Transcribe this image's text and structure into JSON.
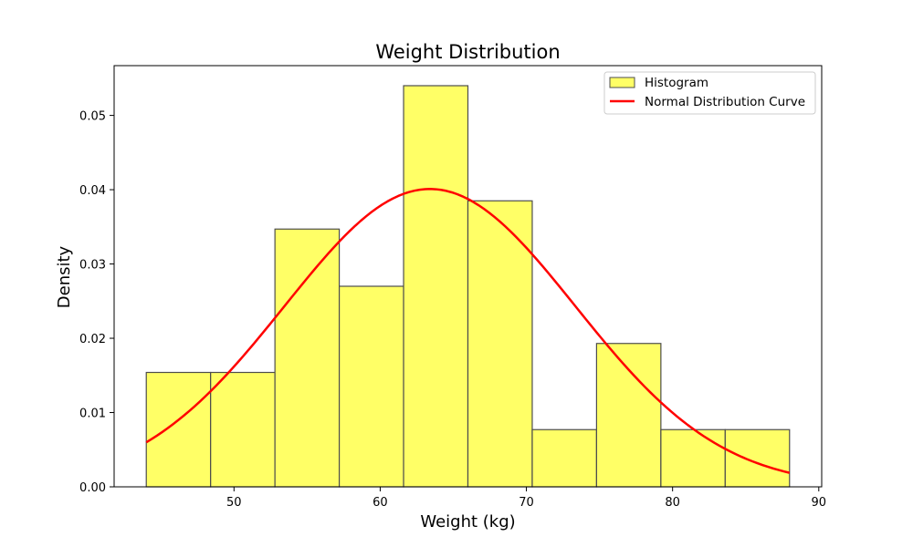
{
  "chart_data": {
    "type": "bar",
    "title": "Weight Distribution",
    "xlabel": "Weight (kg)",
    "ylabel": "Density",
    "xlim": [
      41.8,
      90.2
    ],
    "ylim": [
      0,
      0.0567
    ],
    "xticks": [
      50,
      60,
      70,
      80,
      90
    ],
    "yticks": [
      0.0,
      0.01,
      0.02,
      0.03,
      0.04,
      0.05
    ],
    "ytick_labels": [
      "0.00",
      "0.01",
      "0.02",
      "0.03",
      "0.04",
      "0.05"
    ],
    "grid": false,
    "legend_position": "top-right",
    "histogram": {
      "name": "Histogram",
      "bin_edges": [
        44.0,
        48.4,
        52.8,
        57.2,
        61.6,
        66.0,
        70.4,
        74.8,
        79.2,
        83.6,
        88.0
      ],
      "values": [
        0.0154,
        0.0154,
        0.0347,
        0.027,
        0.054,
        0.0385,
        0.0077,
        0.0193,
        0.0077,
        0.0077
      ],
      "color": "#ffff66",
      "edge_color": "#4d4d4d"
    },
    "series": [
      {
        "name": "Normal Distribution Curve",
        "type": "line",
        "color": "#ff0000",
        "mean": 63.4,
        "std": 9.95,
        "x_range": [
          44.0,
          88.0
        ]
      }
    ]
  }
}
